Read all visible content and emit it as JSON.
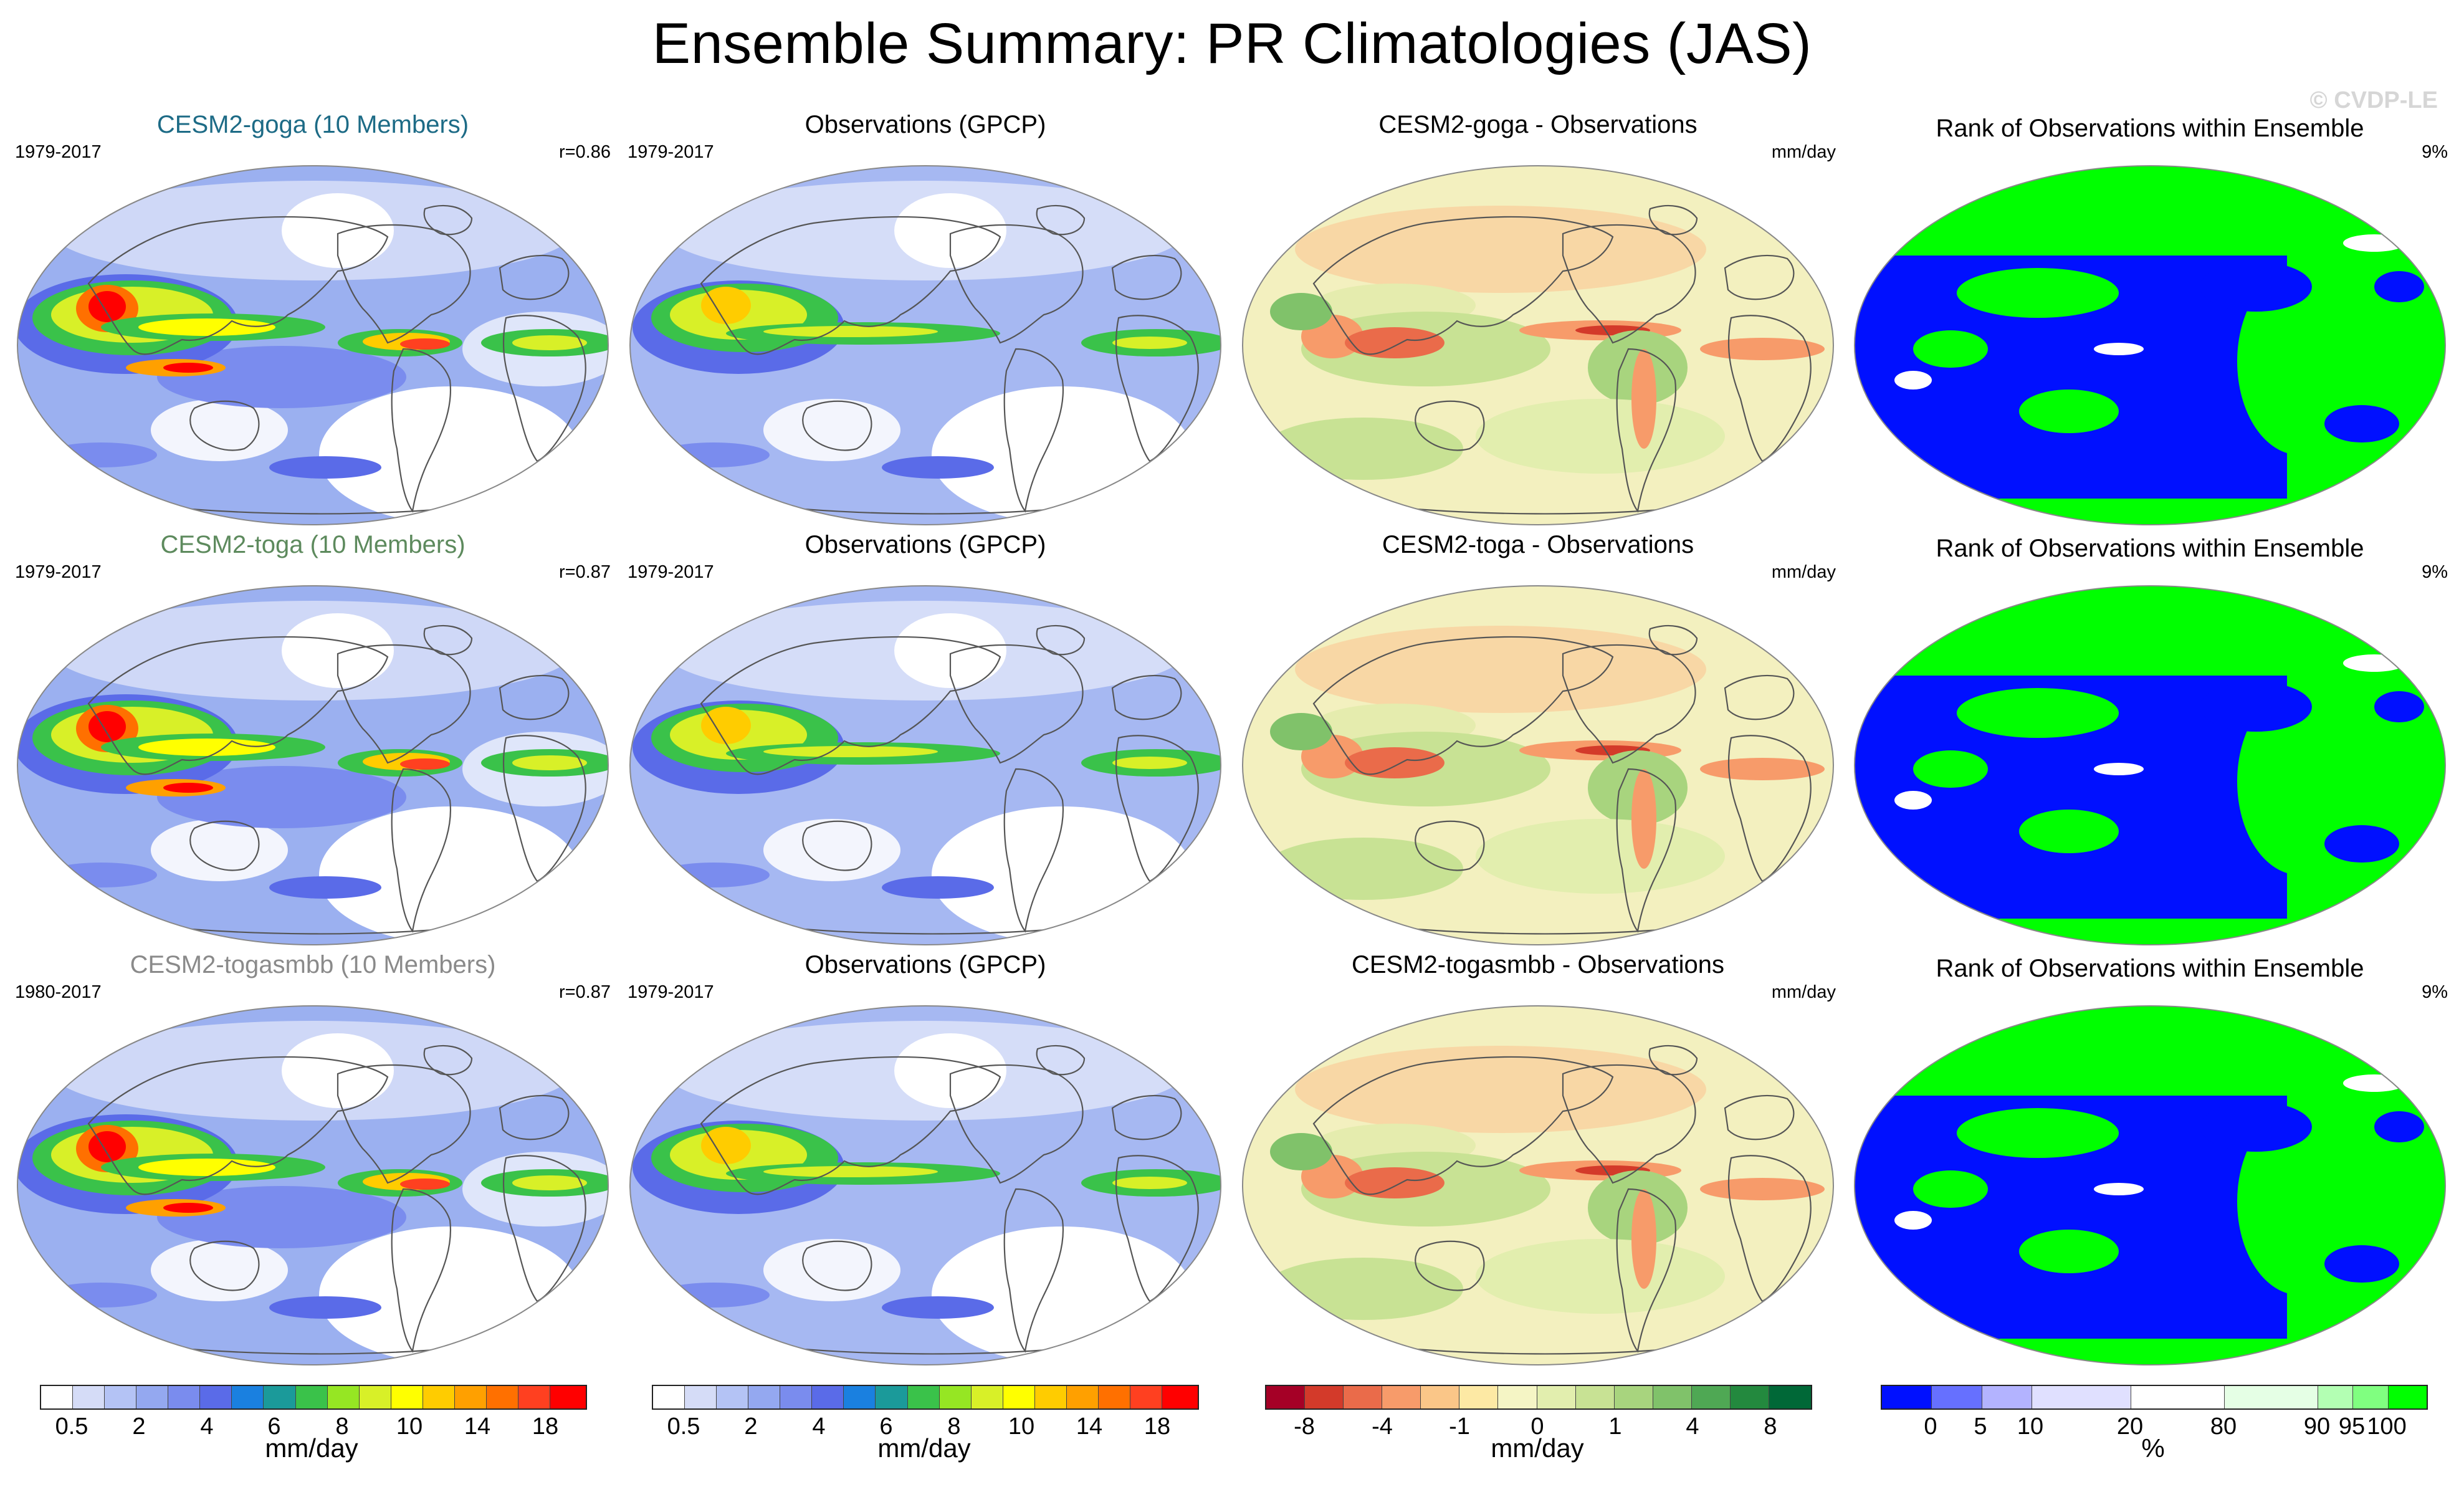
{
  "title": "Ensemble Summary: PR Climatologies (JAS)",
  "copyright": "© CVDP-LE",
  "rows": [
    {
      "model": {
        "title": "CESM2-goga (10 Members)",
        "title_color": "#1d6b86",
        "years": "1979-2017",
        "corr": "r=0.86"
      },
      "obs": {
        "title": "Observations (GPCP)",
        "years": "1979-2017"
      },
      "diff": {
        "title": "CESM2-goga - Observations",
        "units": "mm/day"
      },
      "rank": {
        "title": "Rank of Observations within Ensemble",
        "pct": "9%"
      }
    },
    {
      "model": {
        "title": "CESM2-toga (10 Members)",
        "title_color": "#5d8a5d",
        "years": "1979-2017",
        "corr": "r=0.87"
      },
      "obs": {
        "title": "Observations (GPCP)",
        "years": "1979-2017"
      },
      "diff": {
        "title": "CESM2-toga - Observations",
        "units": "mm/day"
      },
      "rank": {
        "title": "Rank of Observations within Ensemble",
        "pct": "9%"
      }
    },
    {
      "model": {
        "title": "CESM2-togasmbb (10 Members)",
        "title_color": "#8a8a8a",
        "years": "1980-2017",
        "corr": "r=0.87"
      },
      "obs": {
        "title": "Observations (GPCP)",
        "years": "1979-2017"
      },
      "diff": {
        "title": "CESM2-togasmbb - Observations",
        "units": "mm/day"
      },
      "rank": {
        "title": "Rank of Observations within Ensemble",
        "pct": "9%"
      }
    }
  ],
  "legends": {
    "precip": {
      "colors": [
        "#ffffff",
        "#d5dcf7",
        "#b4c3f5",
        "#94a8f0",
        "#7a8cee",
        "#5a6be8",
        "#1a80e0",
        "#1b9a9a",
        "#3ac24a",
        "#96e623",
        "#d8f028",
        "#ffff00",
        "#ffcc00",
        "#ffa000",
        "#ff7000",
        "#ff4020",
        "#ff0000"
      ],
      "ticks": [
        "0.5",
        "2",
        "4",
        "6",
        "8",
        "10",
        "14",
        "18"
      ],
      "units": "mm/day"
    },
    "diff": {
      "colors": [
        "#a50026",
        "#d33a2a",
        "#ea6b4a",
        "#f79b6a",
        "#fac688",
        "#fde9a4",
        "#f5f5c5",
        "#e2eeae",
        "#c8e294",
        "#a8d47e",
        "#80c26a",
        "#4fa854",
        "#23893e",
        "#006837"
      ],
      "ticks": [
        "-8",
        "-4",
        "-1",
        "0",
        "1",
        "4",
        "8"
      ],
      "units": "mm/day"
    },
    "rank": {
      "colors": [
        "#0010ff",
        "#6670ff",
        "#b3b3ff",
        "#e0e0ff",
        "#ffffff",
        "#e5ffe5",
        "#b3ffb3",
        "#80ff80",
        "#00ff00"
      ],
      "ticks": [
        "0",
        "5",
        "10",
        "20",
        "80",
        "90",
        "95",
        "100"
      ],
      "units": "%"
    }
  },
  "colors": {
    "rank_blue": "#0010ff",
    "rank_green": "#00ff00",
    "diff_base": "#f3f0bf",
    "precip_base": "#8fa4ee"
  }
}
